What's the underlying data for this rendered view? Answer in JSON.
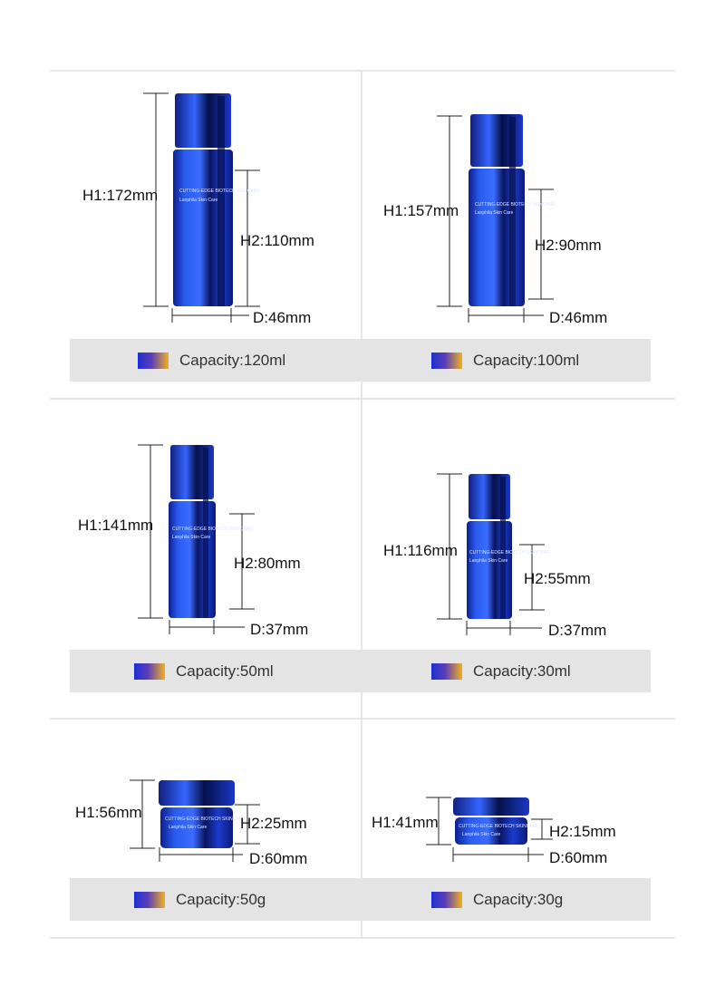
{
  "products": [
    {
      "h1": "H1:172mm",
      "h2": "H2:110mm",
      "d": "D:46mm",
      "capacity": "Capacity:120ml"
    },
    {
      "h1": "H1:157mm",
      "h2": "H2:90mm",
      "d": "D:46mm",
      "capacity": "Capacity:100ml"
    },
    {
      "h1": "H1:141mm",
      "h2": "H2:80mm",
      "d": "D:37mm",
      "capacity": "Capacity:50ml"
    },
    {
      "h1": "H1:116mm",
      "h2": "H2:55mm",
      "d": "D:37mm",
      "capacity": "Capacity:30ml"
    },
    {
      "h1": "H1:56mm",
      "h2": "H2:25mm",
      "d": "D:60mm",
      "capacity": "Capacity:50g"
    },
    {
      "h1": "H1:41mm",
      "h2": "H2:15mm",
      "d": "D:60mm",
      "capacity": "Capacity:30g"
    }
  ],
  "colors": {
    "bottle": "#1f3fd6",
    "bottle_dark": "#0a1560",
    "swatch_start": "#1c2fd6",
    "swatch_end": "#f1b020"
  },
  "labels": {
    "bottle_brand": "CUTTING-EDGE BIOTECH SKINCARE",
    "bottle_line": "Lanphila Skin Care"
  }
}
